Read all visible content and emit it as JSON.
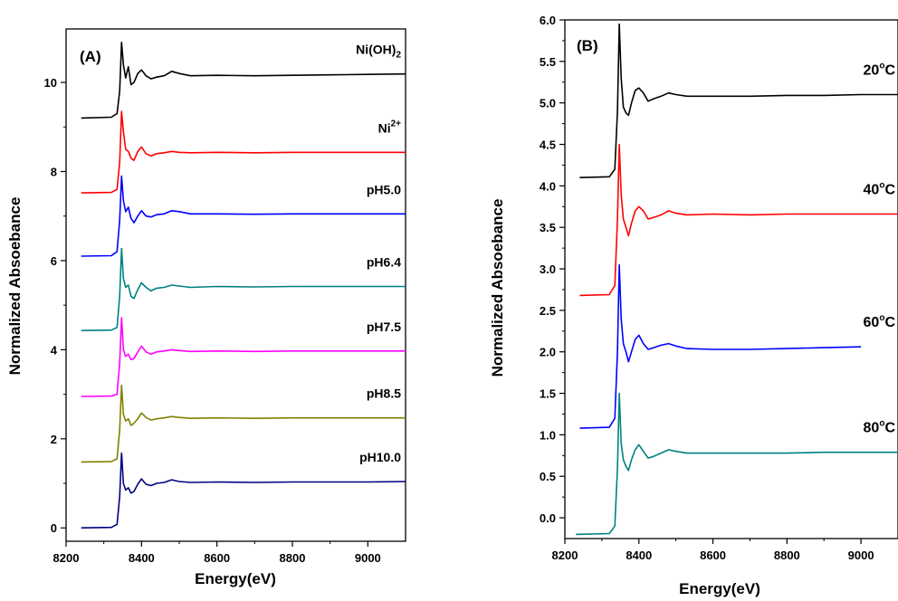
{
  "chart_data": [
    {
      "type": "line",
      "panel_label": "(A)",
      "xlabel": "Energy(eV)",
      "ylabel": "Normalized Absoebance",
      "xlim": [
        8200,
        9100
      ],
      "ylim": [
        -0.3,
        11.2
      ],
      "xticks": [
        8200,
        8400,
        8600,
        8800,
        9000
      ],
      "xtick_labels": [
        "8200",
        "8400",
        "8600",
        "8800",
        "9000"
      ],
      "yticks": [
        0,
        2,
        4,
        6,
        8,
        10
      ],
      "ytick_labels": [
        "0",
        "2",
        "4",
        "6",
        "8",
        "10"
      ],
      "grid": false,
      "edge": 8345,
      "series": [
        {
          "name": "Ni(OH)2",
          "label_main": "Ni(OH)",
          "label_sub": "2",
          "label_sup": "",
          "color": "#000000",
          "x": [
            8240,
            8320,
            8335,
            8342,
            8347,
            8352,
            8358,
            8365,
            8372,
            8380,
            8390,
            8400,
            8412,
            8425,
            8440,
            8460,
            8480,
            8500,
            8530,
            8600,
            8700,
            8800,
            8900,
            9000,
            9100
          ],
          "y": [
            9.2,
            9.22,
            9.3,
            9.8,
            10.9,
            10.4,
            10.1,
            10.35,
            9.95,
            10.0,
            10.2,
            10.28,
            10.15,
            10.08,
            10.12,
            10.15,
            10.25,
            10.2,
            10.15,
            10.16,
            10.15,
            10.16,
            10.17,
            10.18,
            10.19
          ]
        },
        {
          "name": "Ni2+",
          "label_main": "Ni",
          "label_sub": "",
          "label_sup": "2+",
          "color": "#ff0000",
          "x": [
            8240,
            8320,
            8335,
            8342,
            8347,
            8352,
            8358,
            8365,
            8372,
            8380,
            8390,
            8400,
            8412,
            8425,
            8440,
            8460,
            8480,
            8500,
            8530,
            8600,
            8700,
            8800,
            8900,
            9000,
            9100
          ],
          "y": [
            7.52,
            7.53,
            7.6,
            8.2,
            9.35,
            8.9,
            8.5,
            8.45,
            8.3,
            8.25,
            8.45,
            8.55,
            8.4,
            8.35,
            8.4,
            8.42,
            8.45,
            8.43,
            8.42,
            8.43,
            8.42,
            8.43,
            8.43,
            8.43,
            8.43
          ]
        },
        {
          "name": "pH5.0",
          "label_main": "pH5.0",
          "label_sub": "",
          "label_sup": "",
          "color": "#0000ff",
          "x": [
            8240,
            8320,
            8335,
            8342,
            8347,
            8352,
            8358,
            8365,
            8372,
            8380,
            8390,
            8400,
            8412,
            8425,
            8440,
            8460,
            8480,
            8500,
            8530,
            8600,
            8700,
            8800,
            8900,
            9000,
            9100
          ],
          "y": [
            6.1,
            6.11,
            6.2,
            6.9,
            7.9,
            7.35,
            7.1,
            7.2,
            6.95,
            6.85,
            7.0,
            7.12,
            7.0,
            6.98,
            7.03,
            7.05,
            7.12,
            7.1,
            7.05,
            7.05,
            7.04,
            7.05,
            7.05,
            7.05,
            7.05
          ]
        },
        {
          "name": "pH6.4",
          "label_main": "pH6.4",
          "label_sub": "",
          "label_sup": "",
          "color": "#008080",
          "x": [
            8240,
            8320,
            8335,
            8342,
            8347,
            8352,
            8358,
            8365,
            8372,
            8380,
            8390,
            8400,
            8412,
            8425,
            8440,
            8460,
            8480,
            8500,
            8530,
            8600,
            8700,
            8800,
            8900,
            9000,
            9100
          ],
          "y": [
            4.43,
            4.44,
            4.5,
            5.2,
            6.27,
            5.6,
            5.4,
            5.45,
            5.2,
            5.15,
            5.35,
            5.5,
            5.4,
            5.32,
            5.38,
            5.4,
            5.45,
            5.43,
            5.4,
            5.42,
            5.41,
            5.42,
            5.42,
            5.42,
            5.42
          ]
        },
        {
          "name": "pH7.5",
          "label_main": "pH7.5",
          "label_sub": "",
          "label_sup": "",
          "color": "#ff00ff",
          "x": [
            8240,
            8320,
            8335,
            8342,
            8347,
            8352,
            8358,
            8365,
            8372,
            8380,
            8390,
            8400,
            8412,
            8425,
            8440,
            8460,
            8480,
            8500,
            8530,
            8600,
            8700,
            8800,
            8900,
            9000,
            9100
          ],
          "y": [
            2.95,
            2.96,
            3.0,
            3.7,
            4.72,
            4.0,
            3.85,
            3.9,
            3.78,
            3.8,
            3.95,
            4.08,
            3.95,
            3.9,
            3.95,
            3.97,
            4.0,
            3.98,
            3.96,
            3.97,
            3.96,
            3.97,
            3.97,
            3.97,
            3.97
          ]
        },
        {
          "name": "pH8.5",
          "label_main": "pH8.5",
          "label_sub": "",
          "label_sup": "",
          "color": "#808000",
          "x": [
            8240,
            8320,
            8335,
            8342,
            8347,
            8352,
            8358,
            8365,
            8372,
            8380,
            8390,
            8400,
            8412,
            8425,
            8440,
            8460,
            8480,
            8500,
            8530,
            8600,
            8700,
            8800,
            8900,
            9000,
            9100
          ],
          "y": [
            1.48,
            1.49,
            1.55,
            2.2,
            3.2,
            2.55,
            2.4,
            2.45,
            2.3,
            2.35,
            2.45,
            2.58,
            2.48,
            2.42,
            2.45,
            2.47,
            2.5,
            2.48,
            2.46,
            2.47,
            2.46,
            2.47,
            2.47,
            2.47,
            2.47
          ]
        },
        {
          "name": "pH10.0",
          "label_main": "pH10.0",
          "label_sub": "",
          "label_sup": "",
          "color": "#000080",
          "x": [
            8240,
            8320,
            8335,
            8342,
            8347,
            8352,
            8358,
            8365,
            8372,
            8380,
            8390,
            8400,
            8412,
            8425,
            8440,
            8460,
            8480,
            8500,
            8530,
            8600,
            8700,
            8800,
            8900,
            9000,
            9100
          ],
          "y": [
            0.0,
            0.01,
            0.08,
            0.7,
            1.68,
            1.0,
            0.85,
            0.9,
            0.78,
            0.82,
            0.98,
            1.1,
            0.98,
            0.95,
            1.0,
            1.02,
            1.08,
            1.04,
            1.02,
            1.03,
            1.02,
            1.03,
            1.03,
            1.03,
            1.04
          ]
        }
      ]
    },
    {
      "type": "line",
      "panel_label": "(B)",
      "xlabel": "Energy(eV)",
      "ylabel": "Normalized Absoebance",
      "xlim": [
        8200,
        9100
      ],
      "ylim": [
        -0.25,
        6.0
      ],
      "xticks": [
        8200,
        8400,
        8600,
        8800,
        9000
      ],
      "xtick_labels": [
        "8200",
        "8400",
        "8600",
        "8800",
        "9000"
      ],
      "yticks": [
        0.0,
        0.5,
        1.0,
        1.5,
        2.0,
        2.5,
        3.0,
        3.5,
        4.0,
        4.5,
        5.0,
        5.5,
        6.0
      ],
      "ytick_labels": [
        "0.0",
        "0.5",
        "1.0",
        "1.5",
        "2.0",
        "2.5",
        "3.0",
        "3.5",
        "4.0",
        "4.5",
        "5.0",
        "5.5",
        "6.0"
      ],
      "grid": false,
      "series": [
        {
          "name": "20°C",
          "label_num": "20",
          "label_sup": "o",
          "label_unit": "C",
          "color": "#000000",
          "x": [
            8240,
            8320,
            8335,
            8342,
            8347,
            8352,
            8358,
            8365,
            8372,
            8380,
            8390,
            8400,
            8412,
            8425,
            8440,
            8460,
            8480,
            8500,
            8530,
            8600,
            8700,
            8800,
            8900,
            9000,
            9100
          ],
          "y": [
            4.1,
            4.11,
            4.2,
            4.9,
            5.95,
            5.3,
            4.95,
            4.88,
            4.85,
            5.0,
            5.15,
            5.18,
            5.12,
            5.02,
            5.05,
            5.08,
            5.12,
            5.1,
            5.08,
            5.08,
            5.08,
            5.09,
            5.09,
            5.1,
            5.1
          ]
        },
        {
          "name": "40°C",
          "label_num": "40",
          "label_sup": "o",
          "label_unit": "C",
          "color": "#ff0000",
          "x": [
            8240,
            8320,
            8335,
            8342,
            8347,
            8352,
            8358,
            8365,
            8372,
            8380,
            8390,
            8400,
            8412,
            8425,
            8440,
            8460,
            8480,
            8500,
            8530,
            8600,
            8700,
            8800,
            8900,
            9000,
            9100
          ],
          "y": [
            2.68,
            2.69,
            2.8,
            3.6,
            4.5,
            3.9,
            3.6,
            3.5,
            3.4,
            3.55,
            3.7,
            3.75,
            3.7,
            3.6,
            3.62,
            3.65,
            3.7,
            3.67,
            3.65,
            3.66,
            3.65,
            3.66,
            3.66,
            3.66,
            3.66
          ]
        },
        {
          "name": "60°C",
          "label_num": "60",
          "label_sup": "o",
          "label_unit": "C",
          "color": "#0000ff",
          "x": [
            8240,
            8320,
            8335,
            8342,
            8347,
            8352,
            8358,
            8365,
            8372,
            8380,
            8390,
            8400,
            8412,
            8425,
            8440,
            8460,
            8480,
            8500,
            8530,
            8600,
            8700,
            8800,
            8900,
            9000
          ],
          "y": [
            1.08,
            1.09,
            1.2,
            2.0,
            3.05,
            2.4,
            2.1,
            2.0,
            1.88,
            2.0,
            2.15,
            2.2,
            2.1,
            2.03,
            2.05,
            2.08,
            2.1,
            2.07,
            2.04,
            2.03,
            2.03,
            2.04,
            2.05,
            2.06
          ]
        },
        {
          "name": "80°C",
          "label_num": "80",
          "label_sup": "o",
          "label_unit": "C",
          "color": "#008080",
          "x": [
            8230,
            8320,
            8335,
            8342,
            8347,
            8352,
            8358,
            8365,
            8372,
            8380,
            8390,
            8400,
            8412,
            8425,
            8440,
            8460,
            8480,
            8500,
            8530,
            8600,
            8700,
            8800,
            8900,
            9000,
            9100
          ],
          "y": [
            -0.2,
            -0.19,
            -0.1,
            0.6,
            1.5,
            0.9,
            0.7,
            0.62,
            0.57,
            0.7,
            0.82,
            0.88,
            0.8,
            0.72,
            0.74,
            0.78,
            0.82,
            0.8,
            0.78,
            0.78,
            0.78,
            0.78,
            0.79,
            0.79,
            0.79
          ]
        }
      ]
    }
  ]
}
